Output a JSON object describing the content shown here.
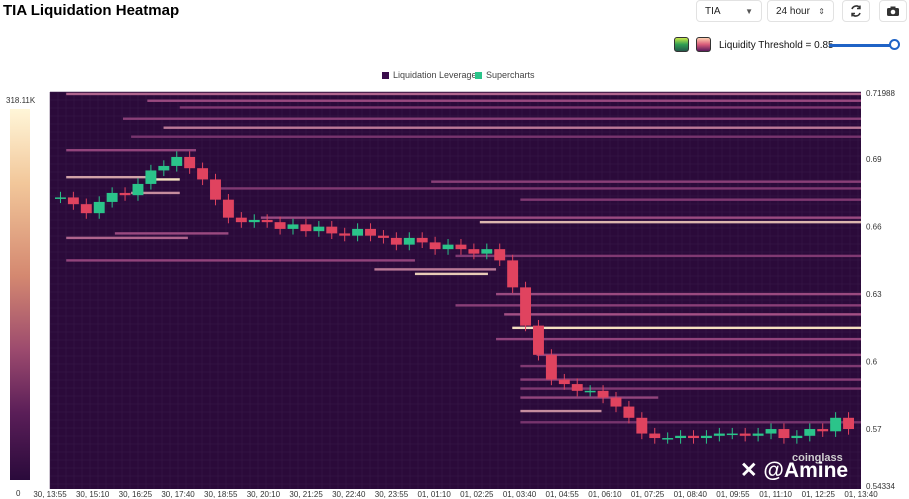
{
  "header": {
    "title": "TIA Liquidation Heatmap",
    "symbol": "TIA",
    "period": "24 hour"
  },
  "controls": {
    "threshold_label": "Liquidity Threshold = 0.85",
    "threshold_value": 0.85
  },
  "icons": [
    "refresh-icon",
    "camera-icon",
    "chevron-down-icon",
    "updown-icon"
  ],
  "colors": {
    "background": "#2b0a3a",
    "low": "#3a0d4c",
    "mid": "#a34f85",
    "high": "#fff5c8",
    "candle_up": "#2bc48a",
    "candle_down": "#e0435f"
  },
  "chart_data": {
    "type": "heatmap",
    "title": "",
    "legend": [
      {
        "name": "Liquidation Leverage",
        "color": "#3a0d4c"
      },
      {
        "name": "Supercharts",
        "color": "#2bc48a"
      }
    ],
    "colorbar": {
      "max_label": "318.11K",
      "min_label": "0"
    },
    "yaxis": {
      "range": [
        0.54334,
        0.71988
      ],
      "ticks": [
        0.57,
        0.6,
        0.63,
        0.66,
        0.69
      ],
      "tick_labels": [
        "0.57",
        "0.6",
        "0.63",
        "0.66",
        "0.69"
      ],
      "top_label": "0.71988",
      "bottom_label": "0.54334"
    },
    "xaxis": {
      "tick_labels": [
        "30, 13:55",
        "30, 15:10",
        "30, 16:25",
        "30, 17:40",
        "30, 18:55",
        "30, 20:10",
        "30, 21:25",
        "30, 22:40",
        "30, 23:55",
        "01, 01:10",
        "01, 02:25",
        "01, 03:40",
        "01, 04:55",
        "01, 06:10",
        "01, 07:25",
        "01, 08:40",
        "01, 09:55",
        "01, 11:10",
        "01, 12:25",
        "01, 13:40"
      ]
    },
    "price_series": {
      "name": "Supercharts",
      "points": [
        0.673,
        0.67,
        0.666,
        0.671,
        0.675,
        0.674,
        0.679,
        0.685,
        0.687,
        0.691,
        0.686,
        0.681,
        0.672,
        0.664,
        0.662,
        0.663,
        0.662,
        0.659,
        0.661,
        0.658,
        0.66,
        0.657,
        0.656,
        0.659,
        0.656,
        0.655,
        0.652,
        0.655,
        0.653,
        0.65,
        0.652,
        0.65,
        0.648,
        0.65,
        0.645,
        0.633,
        0.616,
        0.603,
        0.592,
        0.59,
        0.587,
        0.587,
        0.584,
        0.58,
        0.575,
        0.568,
        0.566,
        0.566,
        0.567,
        0.566,
        0.567,
        0.568,
        0.568,
        0.567,
        0.568,
        0.57,
        0.566,
        0.567,
        0.57,
        0.569,
        0.575,
        0.57
      ]
    },
    "liquidation_levels": [
      {
        "price": 0.719,
        "start": 0.02,
        "end": 1.0,
        "intensity": 0.65
      },
      {
        "price": 0.716,
        "start": 0.12,
        "end": 1.0,
        "intensity": 0.55
      },
      {
        "price": 0.713,
        "start": 0.16,
        "end": 1.0,
        "intensity": 0.4
      },
      {
        "price": 0.708,
        "start": 0.09,
        "end": 1.0,
        "intensity": 0.45
      },
      {
        "price": 0.704,
        "start": 0.14,
        "end": 1.0,
        "intensity": 0.7
      },
      {
        "price": 0.7,
        "start": 0.1,
        "end": 1.0,
        "intensity": 0.35
      },
      {
        "price": 0.694,
        "start": 0.02,
        "end": 0.18,
        "intensity": 0.5
      },
      {
        "price": 0.682,
        "start": 0.02,
        "end": 0.12,
        "intensity": 0.8
      },
      {
        "price": 0.681,
        "start": 0.12,
        "end": 0.16,
        "intensity": 0.95
      },
      {
        "price": 0.68,
        "start": 0.47,
        "end": 1.0,
        "intensity": 0.45
      },
      {
        "price": 0.677,
        "start": 0.2,
        "end": 1.0,
        "intensity": 0.4
      },
      {
        "price": 0.675,
        "start": 0.1,
        "end": 0.16,
        "intensity": 0.75
      },
      {
        "price": 0.672,
        "start": 0.58,
        "end": 1.0,
        "intensity": 0.4
      },
      {
        "price": 0.664,
        "start": 0.26,
        "end": 1.0,
        "intensity": 0.55
      },
      {
        "price": 0.662,
        "start": 0.53,
        "end": 1.0,
        "intensity": 0.85
      },
      {
        "price": 0.657,
        "start": 0.08,
        "end": 0.22,
        "intensity": 0.55
      },
      {
        "price": 0.655,
        "start": 0.02,
        "end": 0.17,
        "intensity": 0.65
      },
      {
        "price": 0.647,
        "start": 0.5,
        "end": 1.0,
        "intensity": 0.4
      },
      {
        "price": 0.645,
        "start": 0.02,
        "end": 0.45,
        "intensity": 0.5
      },
      {
        "price": 0.641,
        "start": 0.4,
        "end": 0.55,
        "intensity": 0.7
      },
      {
        "price": 0.639,
        "start": 0.45,
        "end": 0.54,
        "intensity": 0.9
      },
      {
        "price": 0.63,
        "start": 0.55,
        "end": 1.0,
        "intensity": 0.55
      },
      {
        "price": 0.625,
        "start": 0.5,
        "end": 1.0,
        "intensity": 0.45
      },
      {
        "price": 0.621,
        "start": 0.56,
        "end": 1.0,
        "intensity": 0.6
      },
      {
        "price": 0.615,
        "start": 0.57,
        "end": 1.0,
        "intensity": 0.95
      },
      {
        "price": 0.61,
        "start": 0.55,
        "end": 1.0,
        "intensity": 0.5
      },
      {
        "price": 0.603,
        "start": 0.6,
        "end": 1.0,
        "intensity": 0.5
      },
      {
        "price": 0.598,
        "start": 0.58,
        "end": 1.0,
        "intensity": 0.4
      },
      {
        "price": 0.592,
        "start": 0.58,
        "end": 1.0,
        "intensity": 0.45
      },
      {
        "price": 0.588,
        "start": 0.58,
        "end": 1.0,
        "intensity": 0.4
      },
      {
        "price": 0.584,
        "start": 0.58,
        "end": 0.75,
        "intensity": 0.5
      },
      {
        "price": 0.578,
        "start": 0.58,
        "end": 0.68,
        "intensity": 0.75
      },
      {
        "price": 0.573,
        "start": 0.58,
        "end": 1.0,
        "intensity": 0.35
      }
    ]
  }
}
